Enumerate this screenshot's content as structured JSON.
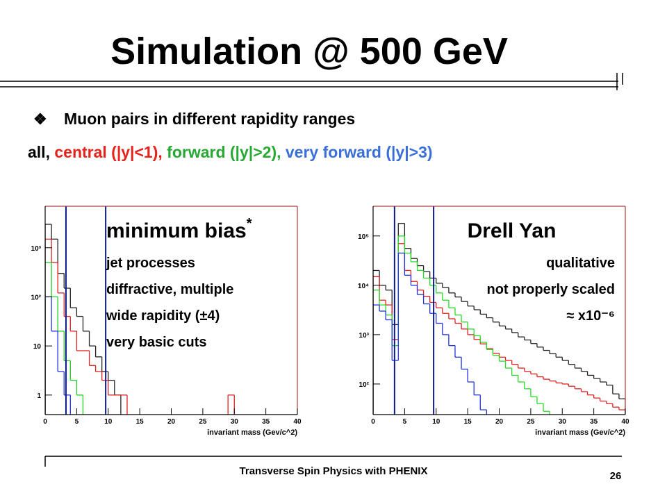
{
  "slide": {
    "title": "Simulation @ 500 GeV",
    "bullet": "Muon pairs in different rapidity ranges",
    "ranges": [
      {
        "text": "all, ",
        "color": "#000000"
      },
      {
        "text": "central (|y|<1), ",
        "color": "#e8211a"
      },
      {
        "text": "forward (|y|>2), ",
        "color": "#26a832"
      },
      {
        "text": "very forward (|y|>3)",
        "color": "#3a6fd8"
      }
    ]
  },
  "chart_data": [
    {
      "type": "histogram",
      "xlabel": "invariant mass (Gev/c^2)",
      "log_y": true,
      "heading": "minimum bias",
      "heading_sup": "*",
      "notes": [
        "jet processes",
        "diffractive, multiple",
        "wide rapidity (±4)",
        "very basic cuts"
      ],
      "xlim": [
        0,
        40
      ],
      "xticks": [
        0,
        5,
        10,
        15,
        20,
        25,
        30,
        35,
        40
      ],
      "ylim": [
        0.4,
        7000
      ],
      "yticks": [
        1,
        10,
        {
          "value": 100,
          "label": "10²"
        },
        {
          "value": 1000,
          "label": "10³"
        }
      ],
      "vlines": [
        3.3,
        9.6
      ],
      "vline_color": "#0a1a8c",
      "bins": [
        0,
        1,
        2,
        3,
        4,
        5,
        6,
        7,
        8,
        9,
        10,
        11,
        12,
        13,
        14,
        15,
        16,
        17,
        18,
        19,
        20,
        21,
        22,
        23,
        24,
        25,
        26,
        27,
        28,
        29,
        30,
        31,
        32,
        33,
        34,
        35,
        36,
        37,
        38,
        39,
        40
      ],
      "series": [
        {
          "color": "#222222",
          "values": [
            3000,
            1500,
            300,
            150,
            60,
            40,
            20,
            10,
            6,
            3,
            2,
            1,
            null,
            null,
            null,
            null,
            null,
            null,
            null,
            null,
            null,
            null,
            null,
            null,
            null,
            null,
            null,
            null,
            null,
            null,
            null,
            null,
            null,
            null,
            null,
            null,
            null,
            null,
            null,
            null
          ]
        },
        {
          "color": "#e02020",
          "values": [
            1500,
            500,
            120,
            40,
            20,
            8,
            8,
            4,
            3,
            2,
            1,
            1,
            1,
            null,
            null,
            null,
            null,
            null,
            null,
            null,
            null,
            null,
            null,
            null,
            null,
            null,
            null,
            null,
            null,
            1,
            null,
            null,
            null,
            null,
            null,
            null,
            null,
            null,
            null,
            null
          ]
        },
        {
          "color": "#22cc22",
          "values": [
            500,
            100,
            20,
            5,
            2,
            1,
            null,
            null,
            null,
            null,
            null,
            null,
            null,
            null,
            null,
            null,
            null,
            null,
            null,
            null,
            null,
            null,
            null,
            null,
            null,
            null,
            null,
            null,
            null,
            null,
            null,
            null,
            null,
            null,
            null,
            null,
            null,
            null,
            null,
            null
          ]
        },
        {
          "color": "#2233dd",
          "values": [
            100,
            20,
            3,
            1,
            null,
            null,
            null,
            null,
            null,
            null,
            null,
            null,
            null,
            null,
            null,
            null,
            null,
            null,
            null,
            null,
            null,
            null,
            null,
            null,
            null,
            null,
            null,
            null,
            null,
            null,
            null,
            null,
            null,
            null,
            null,
            null,
            null,
            null,
            null,
            null
          ]
        }
      ]
    },
    {
      "type": "histogram",
      "xlabel": "invariant mass (Gev/c^2)",
      "log_y": true,
      "heading": "Drell Yan",
      "notes": [
        "qualitative",
        "not properly scaled",
        "≈ x10⁻⁶"
      ],
      "xlim": [
        0,
        40
      ],
      "xticks": [
        0,
        5,
        10,
        15,
        20,
        25,
        30,
        35,
        40
      ],
      "ylim": [
        24,
        400000
      ],
      "yticks": [
        {
          "value": 100,
          "label": "10²"
        },
        {
          "value": 1000,
          "label": "10³"
        },
        {
          "value": 10000,
          "label": "10⁴"
        },
        {
          "value": 100000,
          "label": "10⁵"
        }
      ],
      "vlines": [
        3.4,
        9.6
      ],
      "vline_color": "#0a1a8c",
      "bins": [
        0,
        1,
        2,
        3,
        4,
        5,
        6,
        7,
        8,
        9,
        10,
        11,
        12,
        13,
        14,
        15,
        16,
        17,
        18,
        19,
        20,
        21,
        22,
        23,
        24,
        25,
        26,
        27,
        28,
        29,
        30,
        31,
        32,
        33,
        34,
        35,
        36,
        37,
        38,
        39,
        40
      ],
      "series": [
        {
          "color": "#222222",
          "values": [
            20000,
            10000,
            8000,
            1600,
            180000,
            56000,
            35000,
            25000,
            19000,
            14000,
            11000,
            9000,
            7000,
            5800,
            4700,
            3800,
            3200,
            2600,
            2200,
            1800,
            1500,
            1300,
            1100,
            900,
            780,
            660,
            560,
            480,
            410,
            350,
            300,
            250,
            210,
            180,
            150,
            130,
            110,
            95,
            63,
            50
          ]
        },
        {
          "color": "#e02020",
          "values": [
            15000,
            5000,
            4000,
            800,
            70000,
            20000,
            12000,
            8000,
            6000,
            4500,
            3500,
            2700,
            2100,
            1700,
            1300,
            1000,
            800,
            650,
            520,
            420,
            350,
            300,
            250,
            210,
            180,
            160,
            140,
            125,
            115,
            105,
            100,
            90,
            80,
            70,
            60,
            52,
            45,
            40,
            34,
            30
          ]
        },
        {
          "color": "#22dd22",
          "values": [
            8000,
            4000,
            2500,
            600,
            100000,
            45000,
            30000,
            20000,
            14000,
            10000,
            7000,
            5000,
            3500,
            2500,
            1800,
            1300,
            950,
            700,
            500,
            380,
            290,
            210,
            150,
            110,
            80,
            55,
            40,
            28,
            null,
            null,
            null,
            null,
            null,
            null,
            null,
            null,
            null,
            null,
            null,
            null
          ]
        },
        {
          "color": "#2233dd",
          "values": [
            4000,
            3000,
            2000,
            300,
            45000,
            16000,
            10000,
            6500,
            4200,
            2700,
            1700,
            1000,
            600,
            350,
            200,
            110,
            60,
            30,
            null,
            null,
            null,
            null,
            null,
            null,
            null,
            null,
            null,
            null,
            null,
            null,
            null,
            null,
            null,
            null,
            null,
            null,
            null,
            null,
            null,
            null
          ]
        }
      ]
    }
  ],
  "footer": {
    "text": "Transverse Spin Physics with PHENIX",
    "page": 26
  }
}
